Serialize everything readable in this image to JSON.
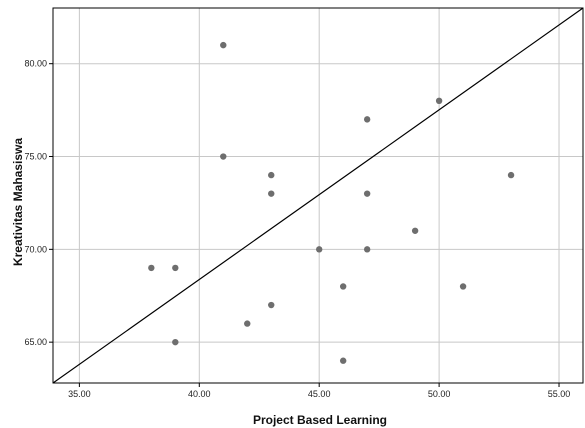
{
  "chart_data": {
    "type": "scatter",
    "xlabel": "Project Based Learning",
    "ylabel": "Kreativitas Mahasiswa",
    "xlim": [
      33.9,
      56.0
    ],
    "ylim": [
      62.8,
      83.0
    ],
    "x_ticks": [
      "35.00",
      "40.00",
      "45.00",
      "50.00",
      "55.00"
    ],
    "x_tick_values": [
      35,
      40,
      45,
      50,
      55
    ],
    "y_ticks": [
      "65.00",
      "70.00",
      "75.00",
      "80.00"
    ],
    "y_tick_values": [
      65,
      70,
      75,
      80
    ],
    "grid": true,
    "points": [
      {
        "x": 38,
        "y": 69
      },
      {
        "x": 39,
        "y": 69
      },
      {
        "x": 39,
        "y": 65
      },
      {
        "x": 41,
        "y": 81
      },
      {
        "x": 41,
        "y": 75
      },
      {
        "x": 42,
        "y": 66
      },
      {
        "x": 43,
        "y": 74
      },
      {
        "x": 43,
        "y": 73
      },
      {
        "x": 43,
        "y": 67
      },
      {
        "x": 45,
        "y": 70
      },
      {
        "x": 46,
        "y": 68
      },
      {
        "x": 46,
        "y": 64
      },
      {
        "x": 47,
        "y": 77
      },
      {
        "x": 47,
        "y": 73
      },
      {
        "x": 47,
        "y": 70
      },
      {
        "x": 49,
        "y": 71
      },
      {
        "x": 50,
        "y": 78
      },
      {
        "x": 51,
        "y": 68
      },
      {
        "x": 53,
        "y": 74
      }
    ],
    "fit_line": {
      "x": [
        33.9,
        56.0
      ],
      "y": [
        62.8,
        83.0
      ]
    },
    "colors": {
      "point": "#6e6e6e",
      "grid": "#c8c8c8",
      "line": "#000000",
      "frame": "#000000"
    }
  }
}
